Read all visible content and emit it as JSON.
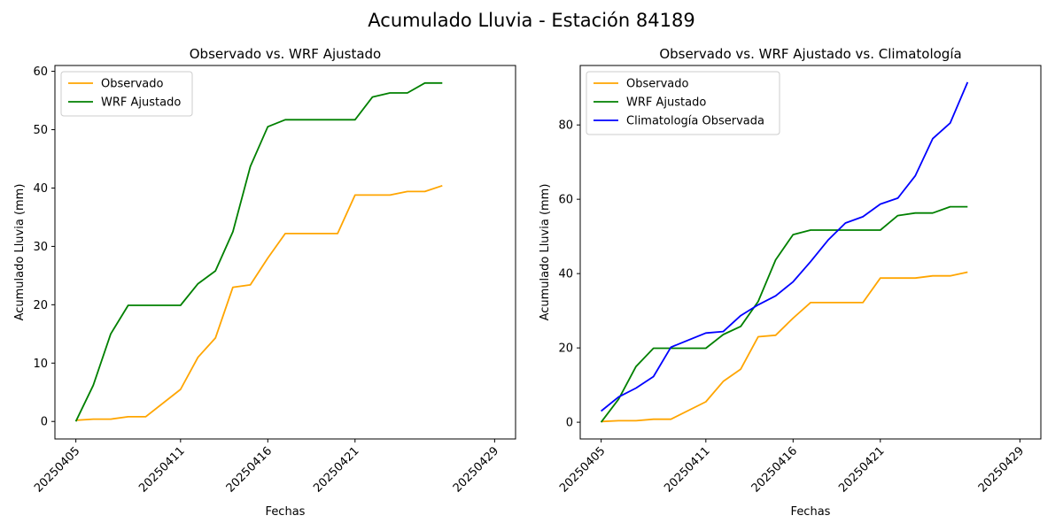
{
  "figure": {
    "suptitle": "Acumulado Lluvia - Estación 84189"
  },
  "chart_data": [
    {
      "type": "line",
      "title": "Observado vs. WRF Ajustado",
      "xlabel": "Fechas",
      "ylabel": "Acumulado Lluvia (mm)",
      "x": [
        "20250405",
        "20250406",
        "20250407",
        "20250408",
        "20250409",
        "20250411",
        "20250412",
        "20250413",
        "20250414",
        "20250415",
        "20250416",
        "20250417",
        "20250418",
        "20250419",
        "20250420",
        "20250421",
        "20250422",
        "20250423",
        "20250424",
        "20250425",
        "20250426",
        "20250429"
      ],
      "xticks": [
        "20250405",
        "20250411",
        "20250416",
        "20250421",
        "20250429"
      ],
      "ylim": [
        -3,
        61
      ],
      "yticks": [
        0,
        10,
        20,
        30,
        40,
        50,
        60
      ],
      "legend": "upper left",
      "series": [
        {
          "name": "Observado",
          "color": "#ffa500",
          "values": [
            0.2,
            0.4,
            0.4,
            0.8,
            0.8,
            5.5,
            11.0,
            14.3,
            23.0,
            23.4,
            28.0,
            32.2,
            32.2,
            32.2,
            32.2,
            38.8,
            38.8,
            38.8,
            39.4,
            39.4,
            40.4,
            null
          ]
        },
        {
          "name": "WRF Ajustado",
          "color": "#008000",
          "values": [
            0.0,
            6.2,
            15.0,
            19.9,
            19.9,
            19.9,
            23.6,
            25.8,
            32.5,
            43.7,
            50.5,
            51.7,
            51.7,
            51.7,
            51.7,
            51.7,
            55.6,
            56.3,
            56.3,
            58.0,
            58.0,
            null
          ]
        }
      ]
    },
    {
      "type": "line",
      "title": "Observado vs. WRF Ajustado vs. Climatología",
      "xlabel": "Fechas",
      "ylabel": "Acumulado Lluvia (mm)",
      "x": [
        "20250405",
        "20250406",
        "20250407",
        "20250408",
        "20250409",
        "20250411",
        "20250412",
        "20250413",
        "20250414",
        "20250415",
        "20250416",
        "20250417",
        "20250418",
        "20250419",
        "20250420",
        "20250421",
        "20250422",
        "20250423",
        "20250424",
        "20250425",
        "20250426",
        "20250429"
      ],
      "xticks": [
        "20250405",
        "20250411",
        "20250416",
        "20250421",
        "20250429"
      ],
      "ylim": [
        -4.5,
        96
      ],
      "yticks": [
        0,
        20,
        40,
        60,
        80
      ],
      "legend": "upper left",
      "series": [
        {
          "name": "Observado",
          "color": "#ffa500",
          "values": [
            0.2,
            0.4,
            0.4,
            0.8,
            0.8,
            5.5,
            11.0,
            14.3,
            23.0,
            23.4,
            28.0,
            32.2,
            32.2,
            32.2,
            32.2,
            38.8,
            38.8,
            38.8,
            39.4,
            39.4,
            40.4,
            null
          ]
        },
        {
          "name": "WRF Ajustado",
          "color": "#008000",
          "values": [
            0.0,
            6.2,
            15.0,
            19.9,
            19.9,
            19.9,
            23.6,
            25.8,
            32.5,
            43.7,
            50.5,
            51.7,
            51.7,
            51.7,
            51.7,
            51.7,
            55.6,
            56.3,
            56.3,
            58.0,
            58.0,
            null
          ]
        },
        {
          "name": "Climatología Observada",
          "color": "#0000ff",
          "values": [
            3.0,
            6.8,
            9.2,
            12.3,
            20.2,
            24.0,
            24.4,
            28.7,
            31.6,
            34.0,
            37.8,
            43.2,
            49.0,
            53.6,
            55.3,
            58.7,
            60.3,
            66.3,
            76.3,
            80.5,
            91.5,
            null
          ]
        }
      ]
    }
  ]
}
